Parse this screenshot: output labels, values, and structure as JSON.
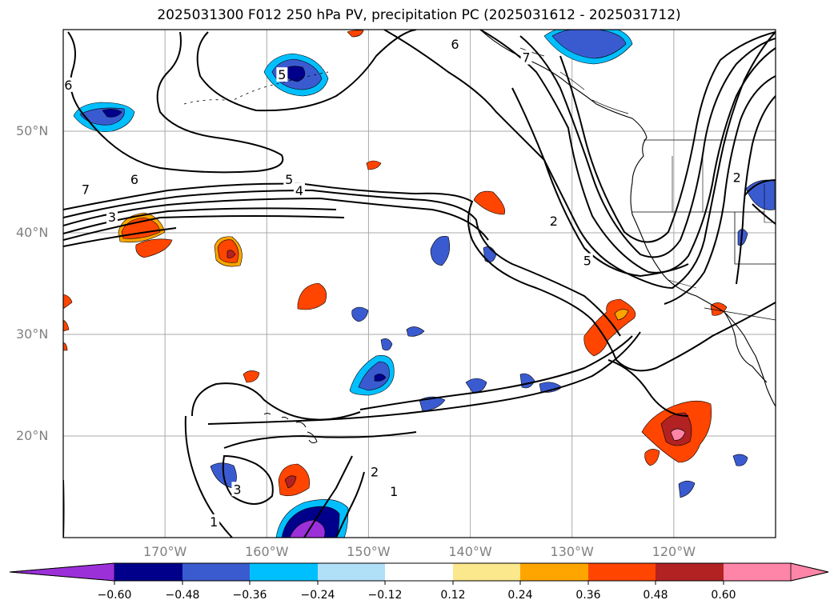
{
  "title": "2025031300 F012 250 hPa PV, precipitation PC (2025031612 - 2025031712)",
  "map": {
    "lon_range": [
      -180,
      -110
    ],
    "lat_range": [
      10,
      60
    ],
    "lat_labels": [
      {
        "text": "50°N",
        "lat": 50
      },
      {
        "text": "40°N",
        "lat": 40
      },
      {
        "text": "30°N",
        "lat": 30
      },
      {
        "text": "20°N",
        "lat": 20
      }
    ],
    "lon_labels": [
      {
        "text": "170°W",
        "lon": -170
      },
      {
        "text": "160°W",
        "lon": -160
      },
      {
        "text": "150°W",
        "lon": -150
      },
      {
        "text": "140°W",
        "lon": -140
      },
      {
        "text": "130°W",
        "lon": -130
      },
      {
        "text": "120°W",
        "lon": -120
      }
    ],
    "grid": true,
    "contour_labels": [
      {
        "text": "6",
        "lon": -179.5,
        "lat": 54.5
      },
      {
        "text": "5",
        "lon": -158.5,
        "lat": 55.5
      },
      {
        "text": "6",
        "lon": -141.5,
        "lat": 58.5
      },
      {
        "text": "7",
        "lon": -134.5,
        "lat": 57.2
      },
      {
        "text": "7",
        "lon": -177.8,
        "lat": 44.2
      },
      {
        "text": "6",
        "lon": -173,
        "lat": 45.2
      },
      {
        "text": "5",
        "lon": -157.8,
        "lat": 45.2
      },
      {
        "text": "4",
        "lon": -156.8,
        "lat": 44.1
      },
      {
        "text": "3",
        "lon": -175.2,
        "lat": 41.5
      },
      {
        "text": "2",
        "lon": -131.8,
        "lat": 41.1
      },
      {
        "text": "5",
        "lon": -128.5,
        "lat": 37.2
      },
      {
        "text": "2",
        "lon": -113.8,
        "lat": 45.4
      },
      {
        "text": "2",
        "lon": -149.4,
        "lat": 16.4
      },
      {
        "text": "1",
        "lon": -147.5,
        "lat": 14.5
      },
      {
        "text": "3",
        "lon": -162.9,
        "lat": 14.7
      },
      {
        "text": "1",
        "lon": -165.2,
        "lat": 11.5
      }
    ]
  },
  "colorbar": {
    "labels": [
      "−0.60",
      "−0.48",
      "−0.36",
      "−0.24",
      "−0.12",
      "0.12",
      "0.24",
      "0.36",
      "0.48",
      "0.60"
    ],
    "colors": {
      "below": "#9b30d9",
      "bins": [
        "#9b30d9",
        "#00008b",
        "#3a5bd0",
        "#00bfff",
        "#b0e0f8",
        "#ffffff",
        "#fce88c",
        "#ffa500",
        "#ff4500",
        "#b22222",
        "#ff85a8"
      ],
      "above": "#ff85a8"
    }
  }
}
